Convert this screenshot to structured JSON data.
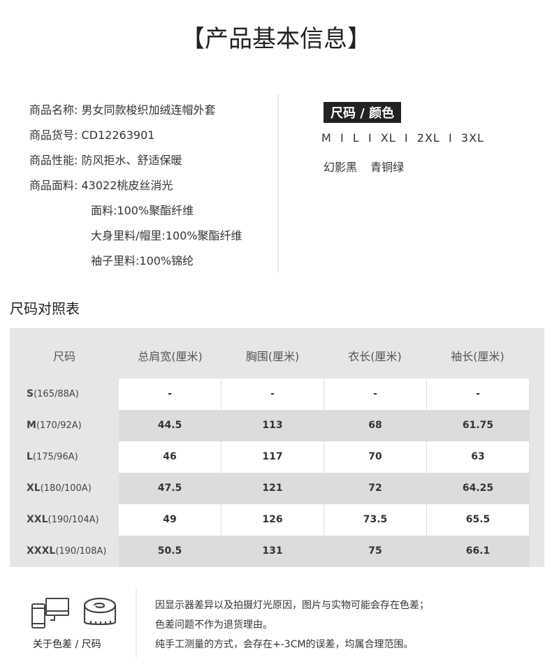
{
  "title": "【产品基本信息】",
  "info": [
    {
      "label": "商品名称:",
      "value": "男女同款梭织加绒连帽外套"
    },
    {
      "label": "商品货号:",
      "value": "CD12263901"
    },
    {
      "label": "商品性能:",
      "value": "防风拒水、舒适保暖"
    },
    {
      "label": "商品面料:",
      "value": "43022桃皮丝消光"
    }
  ],
  "fabric": [
    "面料:100%聚酯纤维",
    "大身里料/帽里:100%聚酯纤维",
    "袖子里料:100%锦纶"
  ],
  "size_color_label": "尺码 / 颜色",
  "sizes": "M  I  L  I  XL  I  2XL  I  3XL",
  "colors": "幻影黑 青铜绿",
  "chart_title": "尺码对照表",
  "table": {
    "headers": [
      "尺码",
      "总肩宽(厘米)",
      "胸围(厘米)",
      "衣长(厘米)",
      "袖长(厘米)"
    ],
    "rows": [
      {
        "size": "S",
        "spec": "(165/88A)",
        "values": [
          "-",
          "-",
          "-",
          "-"
        ]
      },
      {
        "size": "M",
        "spec": "(170/92A)",
        "values": [
          "44.5",
          "113",
          "68",
          "61.75"
        ]
      },
      {
        "size": "L",
        "spec": "(175/96A)",
        "values": [
          "46",
          "117",
          "70",
          "63"
        ]
      },
      {
        "size": "XL",
        "spec": "(180/100A)",
        "values": [
          "47.5",
          "121",
          "72",
          "64.25"
        ]
      },
      {
        "size": "XXL",
        "spec": "(190/104A)",
        "values": [
          "49",
          "126",
          "73.5",
          "65.5"
        ]
      },
      {
        "size": "XXXL",
        "spec": "(190/108A)",
        "values": [
          "50.5",
          "131",
          "75",
          "66.1"
        ]
      }
    ]
  },
  "footer": {
    "icon_label": "关于色差 / 尺码",
    "notes": [
      "因显示器差异以及拍摄灯光原因，图片与实物可能会存在色差；",
      "色差问题不作为退货理由。",
      "纯手工测量的方式，会存在+-3CM的误差，均属合理范围。"
    ]
  }
}
